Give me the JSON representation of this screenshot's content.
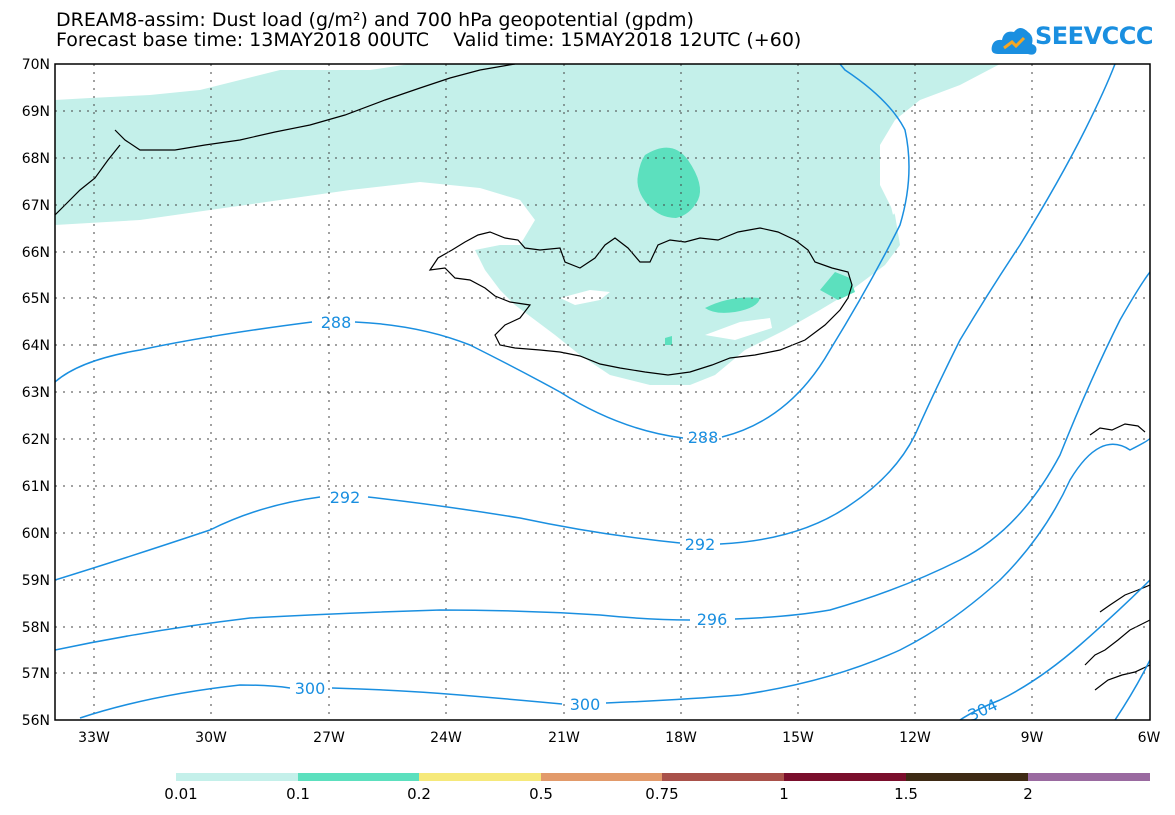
{
  "header": {
    "title_line1": "DREAM8-assim: Dust load (g/m²) and 700 hPa geopotential (gpdm)",
    "title_line2": "Forecast base time: 13MAY2018 00UTC    Valid time: 15MAY2018 12UTC (+60)"
  },
  "logo": {
    "text": "SEEVCCC",
    "color": "#1a8fe0"
  },
  "map": {
    "lat_labels": [
      "70N",
      "69N",
      "68N",
      "67N",
      "66N",
      "65N",
      "64N",
      "63N",
      "62N",
      "61N",
      "60N",
      "59N",
      "58N",
      "57N",
      "56N"
    ],
    "lon_labels": [
      "33W",
      "30W",
      "27W",
      "24W",
      "21W",
      "18W",
      "15W",
      "12W",
      "9W",
      "6W"
    ],
    "contour_color": "#1a8fe0",
    "contour_labels": [
      "288",
      "288",
      "292",
      "292",
      "296",
      "300",
      "300",
      "304"
    ],
    "dust_colors": {
      "light": "#c4f0ea",
      "medium": "#5ce0be"
    }
  },
  "colorbar": {
    "colors": [
      "#c4f0ea",
      "#5ce0be",
      "#f6e97a",
      "#e29a6a",
      "#a9514a",
      "#7a0e2c",
      "#3e2a14",
      "#9a6aa0"
    ],
    "labels": [
      "0.01",
      "0.1",
      "0.2",
      "0.5",
      "0.75",
      "1",
      "1.5",
      "2"
    ]
  }
}
